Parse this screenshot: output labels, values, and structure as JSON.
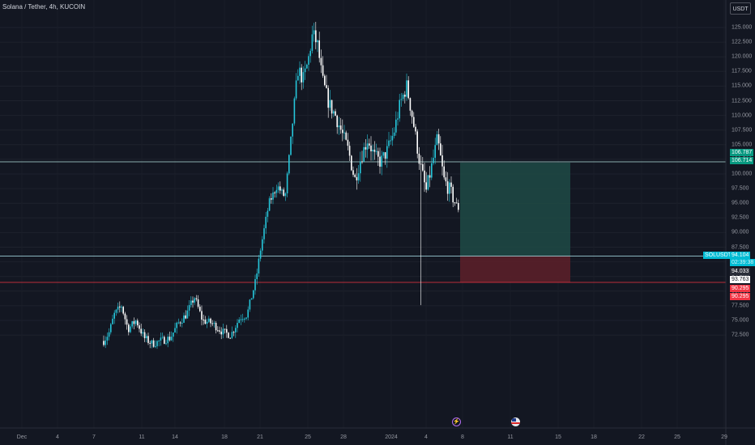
{
  "header": {
    "title": "Solana / Tether, 4h, KUCOIN",
    "currency_button": "USDT"
  },
  "price_axis": {
    "ticks": [
      "125.000",
      "122.500",
      "120.000",
      "117.500",
      "115.000",
      "112.500",
      "110.000",
      "107.500",
      "105.000",
      "102.500",
      "100.000",
      "97.500",
      "95.000",
      "92.500",
      "90.000",
      "87.500",
      "85.000",
      "82.500",
      "80.000",
      "77.500",
      "75.000",
      "72.500"
    ],
    "tick_values": [
      125,
      122.5,
      120,
      117.5,
      115,
      112.5,
      110,
      107.5,
      105,
      102.5,
      100,
      97.5,
      95,
      92.5,
      90,
      87.5,
      85,
      82.5,
      80,
      77.5,
      75,
      72.5
    ]
  },
  "time_axis": {
    "labels": [
      "Dec",
      "4",
      "7",
      "11",
      "14",
      "18",
      "21",
      "25",
      "28",
      "2024",
      "4",
      "8",
      "11",
      "15",
      "18",
      "22",
      "25",
      "29"
    ]
  },
  "price_tags": {
    "target_upper": "106.787",
    "target_lower": "106.714",
    "symbol": "SOLUSDT",
    "last_price": "94.104",
    "countdown": "02:39:38",
    "entry": "94.033",
    "crosshair": "93.763",
    "stop_upper": "90.295",
    "stop_lower": "90.295"
  },
  "levels": {
    "target": 106.714,
    "last": 94.104,
    "stop": 90.295
  },
  "events": {
    "lightning": "⚡",
    "flag": "●"
  },
  "colors": {
    "background": "#131722",
    "up": "#26c6da",
    "down": "#ffffff",
    "profit_zone": "#1e4a45",
    "loss_zone": "#5a1f29",
    "stop_line": "#f23645",
    "last_price_tag": "#00bcd4",
    "target_tag": "#089981",
    "stop_tag": "#f23645"
  }
}
